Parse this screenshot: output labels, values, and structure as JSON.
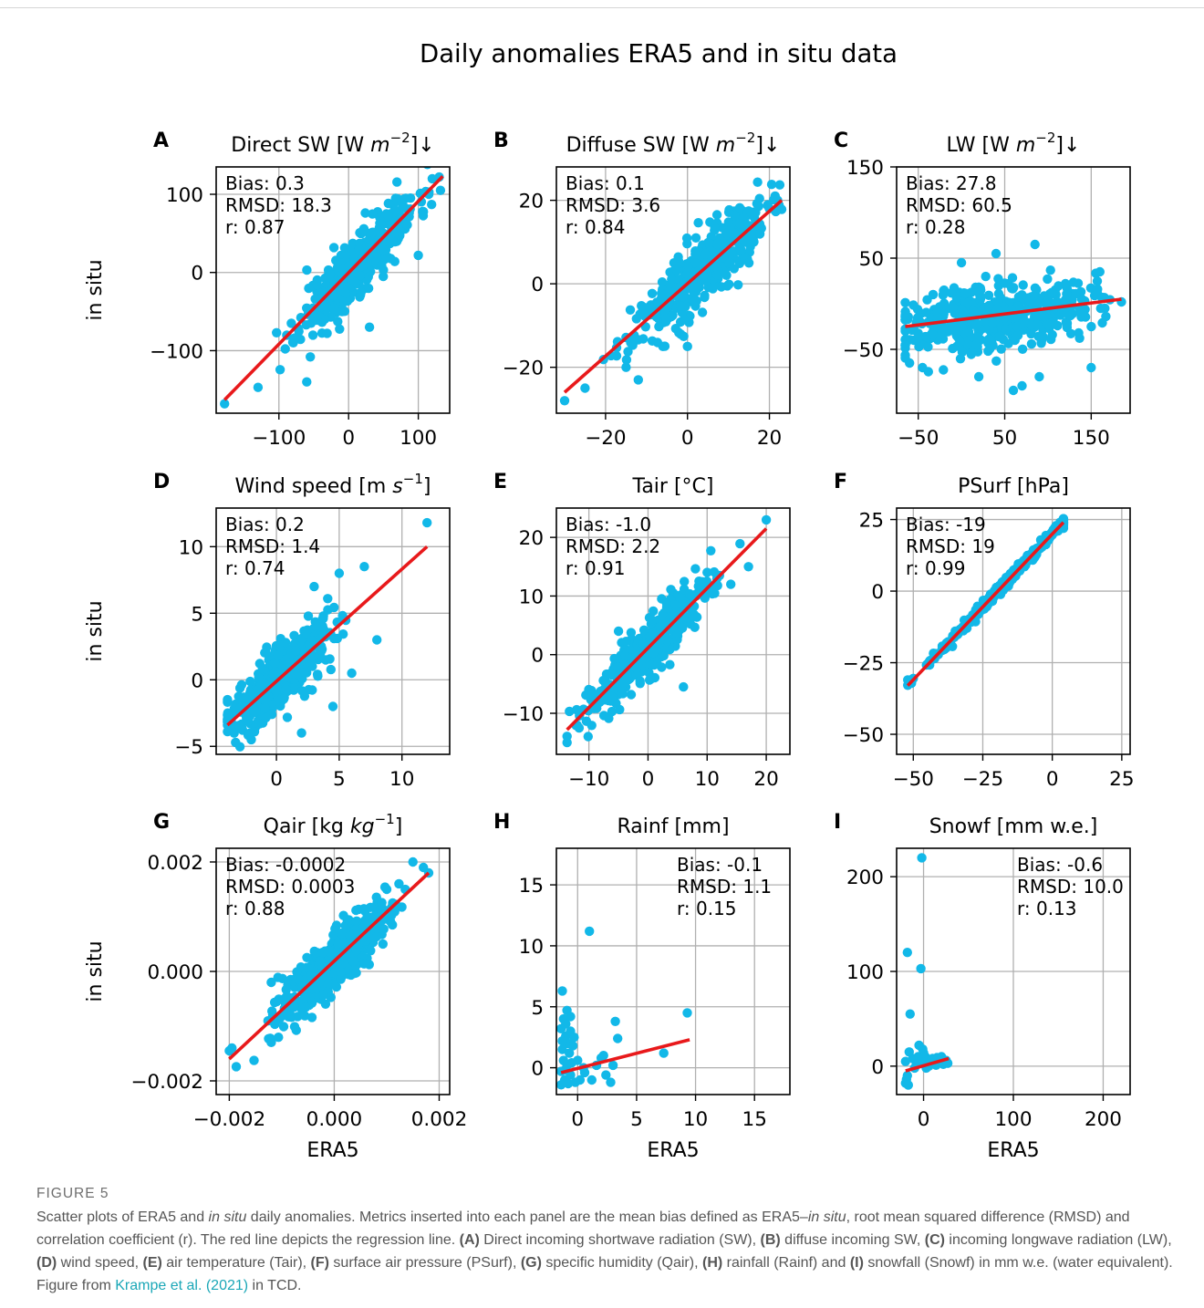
{
  "figure": {
    "title": "Daily anomalies ERA5 and in situ data",
    "caption_label": "FIGURE 5",
    "caption_parts": [
      {
        "t": "Scatter plots of ERA5 and ",
        "s": ""
      },
      {
        "t": "in situ",
        "s": "i"
      },
      {
        "t": " daily anomalies. Metrics inserted into each panel are the mean bias defined as ERA5–",
        "s": ""
      },
      {
        "t": "in situ",
        "s": "i"
      },
      {
        "t": ", root mean squared difference (RMSD) and correlation coefficient (r). The red line depicts the regression line. ",
        "s": ""
      },
      {
        "t": "(A)",
        "s": "b"
      },
      {
        "t": " Direct incoming shortwave radiation (SW), ",
        "s": ""
      },
      {
        "t": "(B)",
        "s": "b"
      },
      {
        "t": " diffuse incoming SW, ",
        "s": ""
      },
      {
        "t": "(C)",
        "s": "b"
      },
      {
        "t": " incoming longwave radiation (LW), ",
        "s": ""
      },
      {
        "t": "(D)",
        "s": "b"
      },
      {
        "t": " wind speed, ",
        "s": ""
      },
      {
        "t": "(E)",
        "s": "b"
      },
      {
        "t": " air temperature (Tair), ",
        "s": ""
      },
      {
        "t": "(F)",
        "s": "b"
      },
      {
        "t": " surface air pressure (PSurf), ",
        "s": ""
      },
      {
        "t": "(G)",
        "s": "b"
      },
      {
        "t": " specific humidity (Qair), ",
        "s": ""
      },
      {
        "t": "(H)",
        "s": "b"
      },
      {
        "t": " rainfall (Rainf) and ",
        "s": ""
      },
      {
        "t": "(I)",
        "s": "b"
      },
      {
        "t": " snowfall (Snowf) in mm w.e. (water equivalent). Figure from ",
        "s": ""
      },
      {
        "t": "Krampe et al. (2021)",
        "s": "c"
      },
      {
        "t": " in TCD.",
        "s": ""
      }
    ]
  },
  "colors": {
    "points": "#12b8e8",
    "regression": "#e8191b",
    "grid": "#b0b0b0"
  },
  "chart_data": [
    {
      "type": "scatter",
      "letter": "A",
      "title": "Direct SW [W m⁻²]↓",
      "title_parts": [
        "Direct SW [W ",
        "m",
        "−2",
        "]↓"
      ],
      "xlabel": "",
      "ylabel": "in situ",
      "xlim": [
        -190,
        145
      ],
      "ylim": [
        -180,
        135
      ],
      "xticks": [
        -100,
        0,
        100
      ],
      "yticks": [
        -100,
        0,
        100
      ],
      "xtick_labels": [
        "−100",
        "0",
        "100"
      ],
      "ytick_labels": [
        "−100",
        "0",
        "100"
      ],
      "stats": [
        "Bias: 0.3",
        "RMSD: 18.3",
        "r: 0.87"
      ],
      "stats_pos": "top-left",
      "regression": {
        "x": [
          -178,
          135
        ],
        "y": [
          -163,
          123
        ]
      },
      "pattern": {
        "seed": 11,
        "n": 420,
        "xmin": -178,
        "xmax": 135,
        "mean": 15,
        "sd": 42,
        "noise": 20
      },
      "outliers": [
        [
          -178,
          -168
        ],
        [
          -130,
          -147
        ],
        [
          -60,
          -140
        ],
        [
          -55,
          -108
        ],
        [
          100,
          22
        ],
        [
          115,
          100
        ],
        [
          130,
          122
        ],
        [
          120,
          120
        ],
        [
          30,
          -70
        ]
      ]
    },
    {
      "type": "scatter",
      "letter": "B",
      "title": "Diffuse SW [W m⁻²]↓",
      "title_parts": [
        "Diffuse SW [W ",
        "m",
        "−2",
        "]↓"
      ],
      "xlabel": "",
      "ylabel": "",
      "xlim": [
        -32,
        25
      ],
      "ylim": [
        -31,
        28
      ],
      "xticks": [
        -20,
        0,
        20
      ],
      "yticks": [
        -20,
        0,
        20
      ],
      "xtick_labels": [
        "−20",
        "0",
        "20"
      ],
      "ytick_labels": [
        "−20",
        "0",
        "20"
      ],
      "stats": [
        "Bias: 0.1",
        "RMSD: 3.6",
        "r: 0.84"
      ],
      "stats_pos": "top-left",
      "regression": {
        "x": [
          -30,
          23
        ],
        "y": [
          -26,
          20
        ]
      },
      "pattern": {
        "seed": 23,
        "n": 420,
        "xmin": -30,
        "xmax": 23,
        "mean": 3,
        "sd": 8,
        "noise": 4
      },
      "outliers": [
        [
          -30,
          -28
        ],
        [
          -25,
          -25
        ],
        [
          -15,
          -20
        ],
        [
          -12,
          -23
        ],
        [
          -6,
          -15
        ],
        [
          0,
          -15
        ],
        [
          15,
          5
        ],
        [
          20,
          18
        ],
        [
          22,
          20
        ]
      ]
    },
    {
      "type": "scatter",
      "letter": "C",
      "title": "LW [W m⁻²]↓",
      "title_parts": [
        "LW [W ",
        "m",
        "−2",
        "]↓"
      ],
      "xlabel": "",
      "ylabel": "",
      "xlim": [
        -75,
        195
      ],
      "ylim": [
        -120,
        150
      ],
      "xticks": [
        -50,
        50,
        150
      ],
      "yticks": [
        -50,
        50,
        150
      ],
      "xtick_labels": [
        "−50",
        "50",
        "150"
      ],
      "ytick_labels": [
        "−50",
        "50",
        "150"
      ],
      "stats": [
        "Bias: 27.8",
        "RMSD: 60.5",
        "r: 0.28"
      ],
      "stats_pos": "top-left",
      "regression": {
        "x": [
          -65,
          185
        ],
        "y": [
          -25,
          5
        ]
      },
      "pattern": {
        "seed": 37,
        "n": 480,
        "xmin": -65,
        "xmax": 185,
        "mean": 40,
        "sd": 55,
        "noise": 18
      },
      "outliers": [
        [
          -55,
          -40
        ],
        [
          -60,
          -65
        ],
        [
          -45,
          -70
        ],
        [
          20,
          -80
        ],
        [
          60,
          -95
        ],
        [
          70,
          -90
        ],
        [
          90,
          -80
        ],
        [
          100,
          -140
        ],
        [
          85,
          65
        ],
        [
          40,
          55
        ],
        [
          0,
          45
        ],
        [
          160,
          35
        ],
        [
          150,
          -70
        ],
        [
          185,
          2
        ]
      ]
    },
    {
      "type": "scatter",
      "letter": "D",
      "title": "Wind speed [m s⁻¹]",
      "title_parts": [
        "Wind speed [m ",
        "s",
        "−1",
        "]"
      ],
      "xlabel": "",
      "ylabel": "in situ",
      "xlim": [
        -4.8,
        13.8
      ],
      "ylim": [
        -5.6,
        12.9
      ],
      "xticks": [
        0,
        5,
        10
      ],
      "yticks": [
        -5,
        0,
        5,
        10
      ],
      "xtick_labels": [
        "0",
        "5",
        "10"
      ],
      "ytick_labels": [
        "−5",
        "0",
        "5",
        "10"
      ],
      "stats": [
        "Bias: 0.2",
        "RMSD: 1.4",
        "r: 0.74"
      ],
      "stats_pos": "top-left",
      "regression": {
        "x": [
          -3.9,
          12
        ],
        "y": [
          -3.4,
          10
        ]
      },
      "pattern": {
        "seed": 41,
        "n": 480,
        "xmin": -3.9,
        "xmax": 12,
        "mean": 0.3,
        "sd": 2.0,
        "noise": 1.2
      },
      "outliers": [
        [
          -3.9,
          -3.4
        ],
        [
          -2,
          -4.5
        ],
        [
          2,
          -4
        ],
        [
          6,
          0.5
        ],
        [
          8,
          3
        ],
        [
          7,
          8.5
        ],
        [
          5,
          8
        ],
        [
          3,
          7
        ],
        [
          12,
          11.8
        ],
        [
          4.5,
          -2
        ]
      ]
    },
    {
      "type": "scatter",
      "letter": "E",
      "title": "Tair [°C]",
      "title_parts": [
        "Tair [°C]"
      ],
      "xlabel": "",
      "ylabel": "",
      "xlim": [
        -15.5,
        24
      ],
      "ylim": [
        -17,
        25
      ],
      "xticks": [
        -10,
        0,
        10,
        20
      ],
      "yticks": [
        -10,
        0,
        10,
        20
      ],
      "xtick_labels": [
        "−10",
        "0",
        "10",
        "20"
      ],
      "ytick_labels": [
        "−10",
        "0",
        "10",
        "20"
      ],
      "stats": [
        "Bias: -1.0",
        "RMSD: 2.2",
        "r: 0.91"
      ],
      "stats_pos": "top-left",
      "regression": {
        "x": [
          -13.7,
          20
        ],
        "y": [
          -12.8,
          21.5
        ]
      },
      "pattern": {
        "seed": 53,
        "n": 480,
        "xmin": -13.7,
        "xmax": 20,
        "mean": 0.5,
        "sd": 5.5,
        "noise": 2.2
      },
      "outliers": [
        [
          -13.7,
          -15
        ],
        [
          -12,
          -12
        ],
        [
          6,
          -5.5
        ],
        [
          17,
          15
        ],
        [
          20,
          23
        ],
        [
          14,
          12
        ],
        [
          -5,
          4
        ]
      ]
    },
    {
      "type": "scatter",
      "letter": "F",
      "title": "PSurf [hPa]",
      "title_parts": [
        "PSurf [hPa]"
      ],
      "xlabel": "",
      "ylabel": "",
      "xlim": [
        -56,
        28
      ],
      "ylim": [
        -57,
        29
      ],
      "xticks": [
        -50,
        -25,
        0,
        25
      ],
      "yticks": [
        -50,
        -25,
        0,
        25
      ],
      "xtick_labels": [
        "−50",
        "−25",
        "0",
        "25"
      ],
      "ytick_labels": [
        "−50",
        "−25",
        "0",
        "25"
      ],
      "stats": [
        "Bias: -19",
        "RMSD: 19",
        "r: 0.99"
      ],
      "stats_pos": "top-left",
      "regression": {
        "x": [
          -52,
          4
        ],
        "y": [
          -33,
          24
        ]
      },
      "pattern": {
        "seed": 67,
        "n": 420,
        "xmin": -52,
        "xmax": 4,
        "mean": -18,
        "sd": 12,
        "noise": 0.8
      },
      "outliers": [
        [
          -52,
          -31
        ],
        [
          -50,
          -30.5
        ],
        [
          4,
          25
        ],
        [
          3,
          24
        ]
      ]
    },
    {
      "type": "scatter",
      "letter": "G",
      "title": "Qair [kg kg⁻¹]",
      "title_parts": [
        "Qair [kg ",
        "kg",
        "−1",
        "]"
      ],
      "xlabel": "ERA5",
      "ylabel": "in situ",
      "xlim": [
        -0.00225,
        0.0022
      ],
      "ylim": [
        -0.00225,
        0.00225
      ],
      "xticks": [
        -0.002,
        0,
        0.002
      ],
      "yticks": [
        -0.002,
        0,
        0.002
      ],
      "xtick_labels": [
        "−0.002",
        "0.000",
        "0.002"
      ],
      "ytick_labels": [
        "−0.002",
        "0.000",
        "0.002"
      ],
      "stats": [
        "Bias: -0.0002",
        "RMSD: 0.0003",
        "r: 0.88"
      ],
      "stats_pos": "top-left",
      "regression": {
        "x": [
          -0.002,
          0.0018
        ],
        "y": [
          -0.0016,
          0.0018
        ]
      },
      "pattern": {
        "seed": 79,
        "n": 480,
        "xmin": -0.002,
        "xmax": 0.0018,
        "mean": 0.0,
        "sd": 0.0006,
        "noise": 0.00025
      },
      "outliers": [
        [
          -0.002,
          -0.00145
        ],
        [
          -0.00195,
          -0.0014
        ],
        [
          0.0015,
          0.002
        ],
        [
          0.0017,
          0.0019
        ],
        [
          0.0018,
          0.0018
        ],
        [
          0.001,
          0.0015
        ],
        [
          -0.0012,
          -0.0002
        ]
      ]
    },
    {
      "type": "scatter",
      "letter": "H",
      "title": "Rainf [mm]",
      "title_parts": [
        "Rainf [mm]"
      ],
      "xlabel": "ERA5",
      "ylabel": "",
      "xlim": [
        -1.8,
        18
      ],
      "ylim": [
        -2.2,
        18
      ],
      "xticks": [
        0,
        5,
        10,
        15
      ],
      "yticks": [
        0,
        5,
        10,
        15
      ],
      "xtick_labels": [
        "0",
        "5",
        "10",
        "15"
      ],
      "ytick_labels": [
        "0",
        "5",
        "10",
        "15"
      ],
      "stats": [
        "Bias: -0.1",
        "RMSD: 1.1",
        "r: 0.15"
      ],
      "stats_pos": "top-right",
      "regression": {
        "x": [
          -1.4,
          9.5
        ],
        "y": [
          -0.4,
          2.3
        ]
      },
      "pattern": {
        "seed": 97,
        "n": 0,
        "xmin": 0,
        "xmax": 0,
        "mean": 0,
        "sd": 0,
        "noise": 0
      },
      "outliers": [
        [
          -1.3,
          6.3
        ],
        [
          -1.2,
          4
        ],
        [
          -0.9,
          4.7
        ],
        [
          -0.6,
          4.2
        ],
        [
          -1.4,
          3.2
        ],
        [
          -1.0,
          2.6
        ],
        [
          -0.8,
          2.0
        ],
        [
          -1.3,
          1.5
        ],
        [
          -0.7,
          1.2
        ],
        [
          -1.2,
          0.6
        ],
        [
          -0.9,
          0.2
        ],
        [
          -1.4,
          -0.3
        ],
        [
          -0.6,
          -0.6
        ],
        [
          -1.1,
          -1.0
        ],
        [
          -0.8,
          -1.3
        ],
        [
          -1.4,
          -1.4
        ],
        [
          -0.5,
          0.4
        ],
        [
          -1.0,
          3.6
        ],
        [
          -0.6,
          3.0
        ],
        [
          -1.3,
          2.2
        ],
        [
          -0.4,
          1.8
        ],
        [
          -1.1,
          -0.2
        ],
        [
          -0.2,
          -1.2
        ],
        [
          0.2,
          -1.0
        ],
        [
          0.6,
          -0.4
        ],
        [
          1.0,
          11.2
        ],
        [
          1.2,
          -1.0
        ],
        [
          1.6,
          0.2
        ],
        [
          2.0,
          0.8
        ],
        [
          2.4,
          -0.6
        ],
        [
          2.8,
          -1.2
        ],
        [
          3.2,
          3.8
        ],
        [
          3.4,
          2.4
        ],
        [
          3.0,
          0.2
        ],
        [
          2.2,
          1.0
        ],
        [
          7.3,
          1.2
        ],
        [
          9.3,
          4.5
        ],
        [
          0.0,
          0.6
        ],
        [
          -0.3,
          2.5
        ],
        [
          0.5,
          0.0
        ]
      ]
    },
    {
      "type": "scatter",
      "letter": "I",
      "title": "Snowf [mm w.e.]",
      "title_parts": [
        "Snowf [mm w.e.]"
      ],
      "xlabel": "ERA5",
      "ylabel": "",
      "xlim": [
        -30,
        230
      ],
      "ylim": [
        -30,
        230
      ],
      "xticks": [
        0,
        100,
        200
      ],
      "yticks": [
        0,
        100,
        200
      ],
      "xtick_labels": [
        "0",
        "100",
        "200"
      ],
      "ytick_labels": [
        "0",
        "100",
        "200"
      ],
      "stats": [
        "Bias: -0.6",
        "RMSD: 10.0",
        "r: 0.13"
      ],
      "stats_pos": "top-right",
      "regression": {
        "x": [
          -20,
          28
        ],
        "y": [
          -5,
          8
        ]
      },
      "pattern": {
        "seed": 101,
        "n": 0,
        "xmin": 0,
        "xmax": 0,
        "mean": 0,
        "sd": 0,
        "noise": 0
      },
      "outliers": [
        [
          -2,
          220
        ],
        [
          -18,
          120
        ],
        [
          -3,
          103
        ],
        [
          -15,
          55
        ],
        [
          -20,
          -18
        ],
        [
          -19,
          -14
        ],
        [
          -18,
          -10
        ],
        [
          -17,
          -20
        ],
        [
          -16,
          15
        ],
        [
          -20,
          5
        ],
        [
          -5,
          22
        ],
        [
          -1,
          18
        ],
        [
          0,
          14
        ],
        [
          2,
          10
        ],
        [
          5,
          6
        ],
        [
          8,
          3
        ],
        [
          10,
          8
        ],
        [
          12,
          4
        ],
        [
          15,
          9
        ],
        [
          18,
          5
        ],
        [
          20,
          10
        ],
        [
          22,
          2
        ],
        [
          25,
          6
        ],
        [
          27,
          3
        ],
        [
          -8,
          2
        ],
        [
          -10,
          -2
        ],
        [
          -12,
          8
        ],
        [
          3,
          -2
        ],
        [
          6,
          0
        ],
        [
          14,
          1
        ],
        [
          -6,
          10
        ],
        [
          1,
          4
        ]
      ]
    }
  ]
}
